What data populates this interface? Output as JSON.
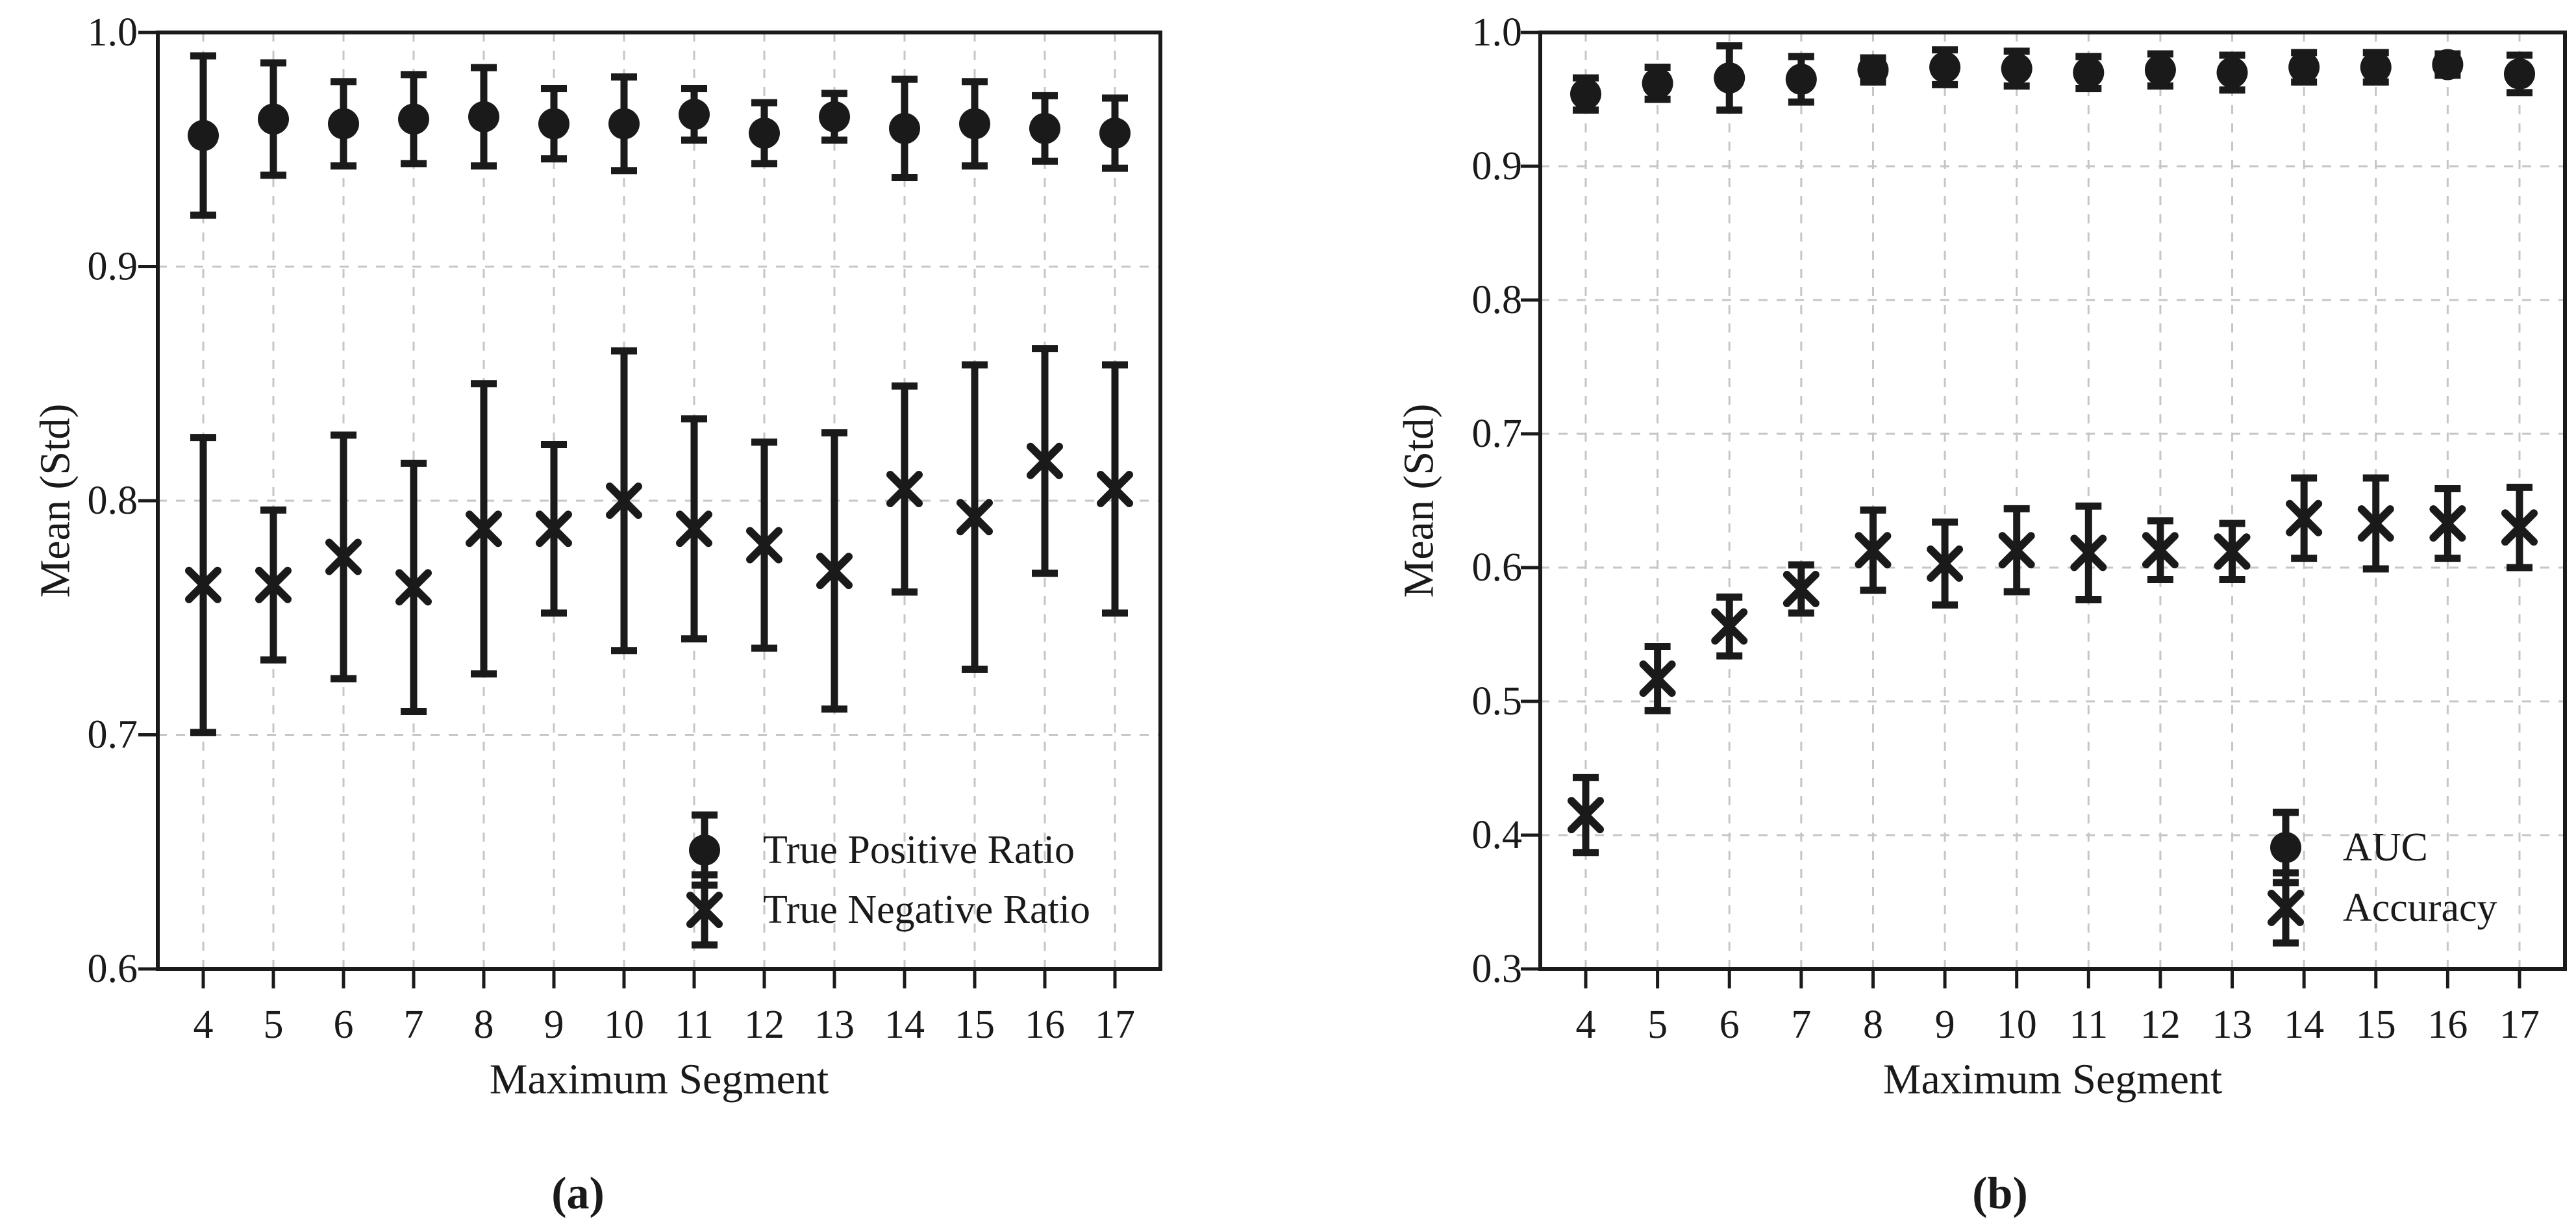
{
  "figure": {
    "background": "#ffffff",
    "ink_color": "#1a1a1a",
    "grid_color": "#c6c6c6"
  },
  "chart_data": [
    {
      "id": "a",
      "type": "scatter",
      "subtype": "errorbar",
      "caption": "(a)",
      "xlabel": "Maximum Segment",
      "ylabel": "Mean (Std)",
      "x": [
        4,
        5,
        6,
        7,
        8,
        9,
        10,
        11,
        12,
        13,
        14,
        15,
        16,
        17
      ],
      "x_labels": [
        "4",
        "5",
        "6",
        "7",
        "8",
        "9",
        "10",
        "11",
        "12",
        "13",
        "14",
        "15",
        "16",
        "17"
      ],
      "ylim": [
        0.6,
        1.0
      ],
      "yticks": [
        0.6,
        0.7,
        0.8,
        0.9,
        1.0
      ],
      "ytick_labels": [
        "0.6",
        "0.7",
        "0.8",
        "0.9",
        "1.0"
      ],
      "grid": true,
      "legend_position": "lower right",
      "series": [
        {
          "name": "True Positive Ratio",
          "marker": "circle",
          "means": [
            0.956,
            0.963,
            0.961,
            0.963,
            0.964,
            0.961,
            0.961,
            0.965,
            0.957,
            0.964,
            0.959,
            0.961,
            0.959,
            0.957
          ],
          "errors": [
            0.034,
            0.024,
            0.018,
            0.019,
            0.021,
            0.015,
            0.02,
            0.011,
            0.013,
            0.01,
            0.021,
            0.018,
            0.014,
            0.015
          ]
        },
        {
          "name": "True Negative Ratio",
          "marker": "x",
          "means": [
            0.764,
            0.764,
            0.776,
            0.763,
            0.788,
            0.788,
            0.8,
            0.788,
            0.781,
            0.77,
            0.805,
            0.793,
            0.817,
            0.805
          ],
          "errors": [
            0.063,
            0.032,
            0.052,
            0.053,
            0.062,
            0.036,
            0.064,
            0.047,
            0.044,
            0.059,
            0.044,
            0.065,
            0.048,
            0.053
          ]
        }
      ]
    },
    {
      "id": "b",
      "type": "scatter",
      "subtype": "errorbar",
      "caption": "(b)",
      "xlabel": "Maximum Segment",
      "ylabel": "Mean (Std)",
      "x": [
        4,
        5,
        6,
        7,
        8,
        9,
        10,
        11,
        12,
        13,
        14,
        15,
        16,
        17
      ],
      "x_labels": [
        "4",
        "5",
        "6",
        "7",
        "8",
        "9",
        "10",
        "11",
        "12",
        "13",
        "14",
        "15",
        "16",
        "17"
      ],
      "ylim": [
        0.3,
        1.0
      ],
      "yticks": [
        0.3,
        0.4,
        0.5,
        0.6,
        0.7,
        0.8,
        0.9,
        1.0
      ],
      "ytick_labels": [
        "0.3",
        "0.4",
        "0.5",
        "0.6",
        "0.7",
        "0.8",
        "0.9",
        "1.0"
      ],
      "grid": true,
      "legend_position": "lower right",
      "series": [
        {
          "name": "AUC",
          "marker": "circle",
          "means": [
            0.954,
            0.962,
            0.966,
            0.965,
            0.972,
            0.974,
            0.973,
            0.97,
            0.972,
            0.97,
            0.974,
            0.974,
            0.976,
            0.969
          ],
          "errors": [
            0.012,
            0.012,
            0.024,
            0.017,
            0.009,
            0.013,
            0.013,
            0.012,
            0.012,
            0.013,
            0.011,
            0.011,
            0.008,
            0.014
          ]
        },
        {
          "name": "Accuracy",
          "marker": "x",
          "means": [
            0.415,
            0.517,
            0.556,
            0.584,
            0.613,
            0.603,
            0.613,
            0.611,
            0.613,
            0.612,
            0.637,
            0.633,
            0.633,
            0.63
          ],
          "errors": [
            0.028,
            0.024,
            0.022,
            0.018,
            0.03,
            0.031,
            0.031,
            0.035,
            0.022,
            0.021,
            0.03,
            0.034,
            0.026,
            0.03
          ]
        }
      ]
    }
  ]
}
